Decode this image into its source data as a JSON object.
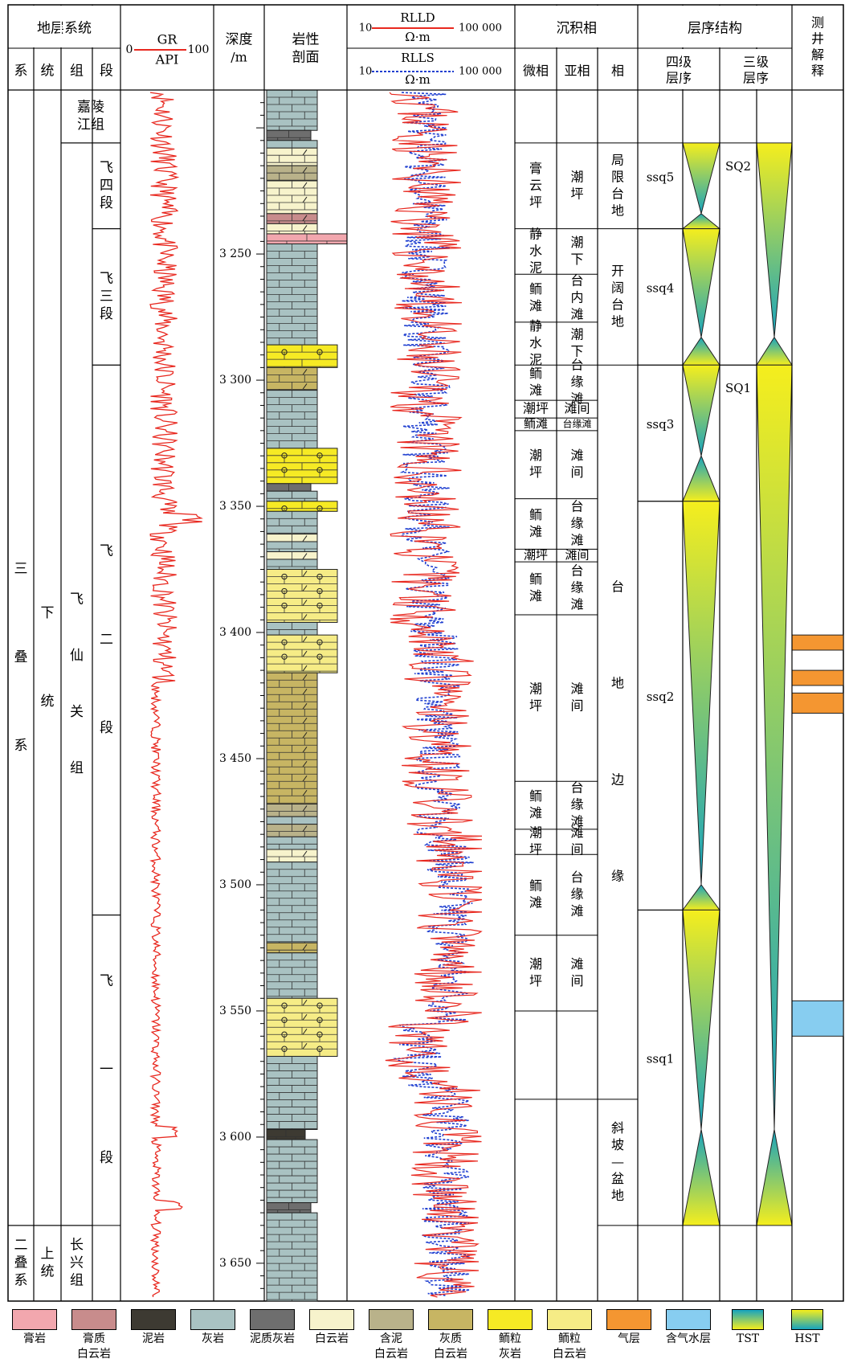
{
  "header": {
    "strat_title": "地层系统",
    "strat_cols": [
      "系",
      "统",
      "组",
      "段"
    ],
    "gr_label": "GR",
    "gr_unit": "API",
    "gr_min": "0",
    "gr_max": "100",
    "depth_label": "深度",
    "depth_unit": "/m",
    "litho_label": "岩性",
    "litho_label2": "剖面",
    "rlld_label": "RLLD",
    "rlls_label": "RLLS",
    "res_unit": "Ω·m",
    "res_min": "10",
    "res_max": "100 000",
    "facies_title": "沉积相",
    "facies_cols": [
      "微相",
      "亚相",
      "相"
    ],
    "seq_title": "层序结构",
    "seq_col4": "四级",
    "seq_col4b": "层序",
    "seq_col3": "三级",
    "seq_col3b": "层序",
    "interp_title": "测井解释"
  },
  "strat": {
    "system": [
      {
        "name": "三叠系",
        "top": 3185,
        "bottom": 3635
      },
      {
        "name": "二叠系",
        "top": 3635,
        "bottom": 3665
      }
    ],
    "series": [
      {
        "name": "下统",
        "top": 3185,
        "bottom": 3635
      },
      {
        "name": "上统",
        "top": 3635,
        "bottom": 3665
      }
    ],
    "formation": [
      {
        "name": "嘉陵江组",
        "top": 3185,
        "bottom": 3206,
        "span": 2
      },
      {
        "name": "飞仙关组",
        "top": 3206,
        "bottom": 3635
      },
      {
        "name": "长兴组",
        "top": 3635,
        "bottom": 3665
      }
    ],
    "member": [
      {
        "name": "飞四段",
        "top": 3206,
        "bottom": 3240
      },
      {
        "name": "飞三段",
        "top": 3240,
        "bottom": 3294
      },
      {
        "name": "飞二段",
        "top": 3294,
        "bottom": 3512
      },
      {
        "name": "飞一段",
        "top": 3512,
        "bottom": 3635
      }
    ]
  },
  "depth": {
    "min": 3185,
    "max": 3665,
    "ticks": [
      "3 250",
      "3 300",
      "3 350",
      "3 400",
      "3 450",
      "3 500",
      "3 550",
      "3 600",
      "3 650"
    ]
  },
  "lithology": [
    {
      "top": 3185,
      "bottom": 3201,
      "type": "limestone"
    },
    {
      "top": 3201,
      "bottom": 3205,
      "type": "marly_limestone"
    },
    {
      "top": 3205,
      "bottom": 3208,
      "type": "limestone"
    },
    {
      "top": 3208,
      "bottom": 3215,
      "type": "dolomite"
    },
    {
      "top": 3215,
      "bottom": 3221,
      "type": "argillaceous_dolomite"
    },
    {
      "top": 3221,
      "bottom": 3234,
      "type": "dolomite"
    },
    {
      "top": 3234,
      "bottom": 3238,
      "type": "gypsum_dolomite"
    },
    {
      "top": 3238,
      "bottom": 3242,
      "type": "dolomite"
    },
    {
      "top": 3242,
      "bottom": 3246,
      "type": "gypsum_rock"
    },
    {
      "top": 3246,
      "bottom": 3286,
      "type": "limestone"
    },
    {
      "top": 3286,
      "bottom": 3295,
      "type": "oolitic_limestone"
    },
    {
      "top": 3295,
      "bottom": 3304,
      "type": "calcareous_dolomite"
    },
    {
      "top": 3304,
      "bottom": 3327,
      "type": "limestone"
    },
    {
      "top": 3327,
      "bottom": 3341,
      "type": "oolitic_limestone"
    },
    {
      "top": 3341,
      "bottom": 3344,
      "type": "marly_limestone"
    },
    {
      "top": 3344,
      "bottom": 3348,
      "type": "limestone"
    },
    {
      "top": 3348,
      "bottom": 3352,
      "type": "oolitic_limestone"
    },
    {
      "top": 3352,
      "bottom": 3361,
      "type": "limestone"
    },
    {
      "top": 3361,
      "bottom": 3364,
      "type": "dolomite"
    },
    {
      "top": 3364,
      "bottom": 3368,
      "type": "limestone"
    },
    {
      "top": 3368,
      "bottom": 3371,
      "type": "dolomite"
    },
    {
      "top": 3371,
      "bottom": 3375,
      "type": "limestone"
    },
    {
      "top": 3375,
      "bottom": 3396,
      "type": "oolitic_dolomite"
    },
    {
      "top": 3396,
      "bottom": 3401,
      "type": "limestone"
    },
    {
      "top": 3401,
      "bottom": 3416,
      "type": "oolitic_dolomite"
    },
    {
      "top": 3416,
      "bottom": 3468,
      "type": "calcareous_dolomite"
    },
    {
      "top": 3468,
      "bottom": 3473,
      "type": "argillaceous_dolomite"
    },
    {
      "top": 3473,
      "bottom": 3476,
      "type": "limestone"
    },
    {
      "top": 3476,
      "bottom": 3481,
      "type": "argillaceous_dolomite"
    },
    {
      "top": 3481,
      "bottom": 3486,
      "type": "limestone"
    },
    {
      "top": 3486,
      "bottom": 3491,
      "type": "dolomite"
    },
    {
      "top": 3491,
      "bottom": 3523,
      "type": "limestone"
    },
    {
      "top": 3523,
      "bottom": 3527,
      "type": "calcareous_dolomite"
    },
    {
      "top": 3527,
      "bottom": 3545,
      "type": "limestone"
    },
    {
      "top": 3545,
      "bottom": 3568,
      "type": "oolitic_dolomite"
    },
    {
      "top": 3568,
      "bottom": 3597,
      "type": "limestone"
    },
    {
      "top": 3597,
      "bottom": 3601,
      "type": "mudstone"
    },
    {
      "top": 3601,
      "bottom": 3626,
      "type": "limestone"
    },
    {
      "top": 3626,
      "bottom": 3630,
      "type": "marly_limestone"
    },
    {
      "top": 3630,
      "bottom": 3665,
      "type": "limestone"
    }
  ],
  "facies": {
    "micro": [
      {
        "name": "",
        "top": 3185,
        "bottom": 3206
      },
      {
        "name": "膏云坪",
        "top": 3206,
        "bottom": 3240
      },
      {
        "name": "静水泥",
        "top": 3240,
        "bottom": 3258
      },
      {
        "name": "鲕滩",
        "top": 3258,
        "bottom": 3277
      },
      {
        "name": "静水泥",
        "top": 3277,
        "bottom": 3294
      },
      {
        "name": "鲕滩",
        "top": 3294,
        "bottom": 3308
      },
      {
        "name": "潮坪",
        "top": 3308,
        "bottom": 3315
      },
      {
        "name": "鲕滩",
        "top": 3315,
        "bottom": 3320
      },
      {
        "name": "潮坪",
        "top": 3320,
        "bottom": 3347
      },
      {
        "name": "鲕滩",
        "top": 3347,
        "bottom": 3367
      },
      {
        "name": "潮坪",
        "top": 3367,
        "bottom": 3372
      },
      {
        "name": "鲕滩",
        "top": 3372,
        "bottom": 3393
      },
      {
        "name": "潮坪",
        "top": 3393,
        "bottom": 3459
      },
      {
        "name": "鲕滩",
        "top": 3459,
        "bottom": 3478
      },
      {
        "name": "潮坪",
        "top": 3478,
        "bottom": 3488
      },
      {
        "name": "鲕滩",
        "top": 3488,
        "bottom": 3520
      },
      {
        "name": "潮坪",
        "top": 3520,
        "bottom": 3550
      },
      {
        "name": "",
        "top": 3550,
        "bottom": 3585
      },
      {
        "name": "",
        "top": 3585,
        "bottom": 3665
      }
    ],
    "sub": [
      {
        "name": "",
        "top": 3185,
        "bottom": 3206
      },
      {
        "name": "潮坪",
        "top": 3206,
        "bottom": 3240
      },
      {
        "name": "潮下",
        "top": 3240,
        "bottom": 3258
      },
      {
        "name": "台内滩",
        "top": 3258,
        "bottom": 3277
      },
      {
        "name": "潮下",
        "top": 3277,
        "bottom": 3294
      },
      {
        "name": "台缘滩",
        "top": 3294,
        "bottom": 3308
      },
      {
        "name": "滩间",
        "top": 3308,
        "bottom": 3315
      },
      {
        "name": "台缘滩",
        "top": 3315,
        "bottom": 3320
      },
      {
        "name": "滩间",
        "top": 3320,
        "bottom": 3347
      },
      {
        "name": "台缘滩",
        "top": 3347,
        "bottom": 3367
      },
      {
        "name": "滩间",
        "top": 3367,
        "bottom": 3372
      },
      {
        "name": "台缘滩",
        "top": 3372,
        "bottom": 3393
      },
      {
        "name": "滩间",
        "top": 3393,
        "bottom": 3459
      },
      {
        "name": "台缘滩",
        "top": 3459,
        "bottom": 3478
      },
      {
        "name": "滩间",
        "top": 3478,
        "bottom": 3488
      },
      {
        "name": "台缘滩",
        "top": 3488,
        "bottom": 3520
      },
      {
        "name": "滩间",
        "top": 3520,
        "bottom": 3550
      },
      {
        "name": "",
        "top": 3550,
        "bottom": 3585
      },
      {
        "name": "",
        "top": 3585,
        "bottom": 3665
      }
    ],
    "facies": [
      {
        "name": "",
        "top": 3185,
        "bottom": 3206
      },
      {
        "name": "局限台地",
        "top": 3206,
        "bottom": 3240
      },
      {
        "name": "开阔台地",
        "top": 3240,
        "bottom": 3294
      },
      {
        "name": "台地边缘",
        "top": 3294,
        "bottom": 3585
      },
      {
        "name": "斜坡—盆地",
        "top": 3585,
        "bottom": 3635
      },
      {
        "name": "",
        "top": 3635,
        "bottom": 3665
      }
    ]
  },
  "sequence4": [
    {
      "name": "ssq5",
      "top": 3206,
      "bottom": 3240,
      "turn": 3234
    },
    {
      "name": "ssq4",
      "top": 3240,
      "bottom": 3294,
      "turn": 3283
    },
    {
      "name": "ssq3",
      "top": 3294,
      "bottom": 3348,
      "turn": 3330
    },
    {
      "name": "ssq2",
      "top": 3348,
      "bottom": 3510,
      "turn": 3500
    },
    {
      "name": "ssq1",
      "top": 3510,
      "bottom": 3635,
      "turn": 3597
    }
  ],
  "sequence3": [
    {
      "name": "SQ2",
      "top": 3206,
      "bottom": 3294,
      "turn": 3283
    },
    {
      "name": "SQ1",
      "top": 3294,
      "bottom": 3635,
      "turn": 3597
    }
  ],
  "interpretation": [
    {
      "type": "gas",
      "top": 3401,
      "bottom": 3407
    },
    {
      "type": "gas",
      "top": 3415,
      "bottom": 3421
    },
    {
      "type": "gas",
      "top": 3424,
      "bottom": 3432
    },
    {
      "type": "gas_water",
      "top": 3546,
      "bottom": 3560
    }
  ],
  "logs_note": "GR, RLLD, RLLS traces digitized as approximate curves",
  "legend": [
    {
      "key": "gypsum_rock",
      "label": "膏岩",
      "label2": ""
    },
    {
      "key": "gypsum_dolomite",
      "label": "膏质",
      "label2": "白云岩"
    },
    {
      "key": "mudstone",
      "label": "泥岩",
      "label2": ""
    },
    {
      "key": "limestone",
      "label": "灰岩",
      "label2": ""
    },
    {
      "key": "marly_limestone",
      "label": "泥质灰岩",
      "label2": ""
    },
    {
      "key": "dolomite",
      "label": "白云岩",
      "label2": ""
    },
    {
      "key": "argillaceous_dolomite",
      "label": "含泥",
      "label2": "白云岩"
    },
    {
      "key": "calcareous_dolomite",
      "label": "灰质",
      "label2": "白云岩"
    },
    {
      "key": "oolitic_limestone",
      "label": "鲕粒",
      "label2": "灰岩"
    },
    {
      "key": "oolitic_dolomite",
      "label": "鲕粒",
      "label2": "白云岩"
    },
    {
      "key": "gas",
      "label": "气层",
      "label2": ""
    },
    {
      "key": "gas_water",
      "label": "含气水层",
      "label2": ""
    },
    {
      "key": "tst",
      "label": "TST",
      "label2": ""
    },
    {
      "key": "hst",
      "label": "HST",
      "label2": ""
    }
  ],
  "colors": {
    "gr_line": "#e8281f",
    "rlld_line": "#e8281f",
    "rlls_line": "#1f3fd0",
    "limestone": "#a9c2c2",
    "dolomite": "#f7f3cc",
    "oolite_yellow": "#f6ea24",
    "oolite_dolo": "#f6ec86",
    "calc_dolo": "#c7b563",
    "gypsum": "#f2a7ae",
    "gypsum_dolo": "#c88c8c",
    "mud": "#3d3a32",
    "marly": "#6e6e6e",
    "arg_dolo": "#b9b28a",
    "gas": "#f49631",
    "gas_water": "#87cdf0",
    "seq_cyan": "#16a3bf",
    "seq_yellow": "#f5ee1d"
  }
}
